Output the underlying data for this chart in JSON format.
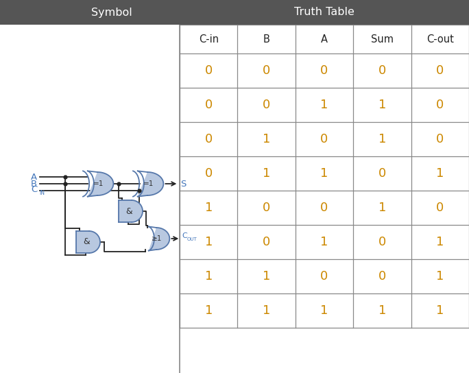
{
  "title_left": "Symbol",
  "title_right": "Truth Table",
  "header_bg": "#555555",
  "header_text_color": "#ffffff",
  "col_headers": [
    "C-in",
    "B",
    "A",
    "Sum",
    "C-out"
  ],
  "col_header_color": "#333333",
  "rows": [
    [
      0,
      0,
      0,
      0,
      0
    ],
    [
      0,
      0,
      1,
      1,
      0
    ],
    [
      0,
      1,
      0,
      1,
      0
    ],
    [
      0,
      1,
      1,
      0,
      1
    ],
    [
      1,
      0,
      0,
      1,
      0
    ],
    [
      1,
      0,
      1,
      0,
      1
    ],
    [
      1,
      1,
      0,
      0,
      1
    ],
    [
      1,
      1,
      1,
      1,
      1
    ]
  ],
  "data_color": "#cc8800",
  "grid_color": "#888888",
  "bg_color": "#ffffff",
  "divider_color": "#888888",
  "fig_width": 6.84,
  "fig_height": 5.44,
  "dpi": 100,
  "gate_color": "#b8c8e0",
  "gate_line_color": "#5577aa",
  "wire_color": "#222222",
  "label_color": "#4477bb"
}
